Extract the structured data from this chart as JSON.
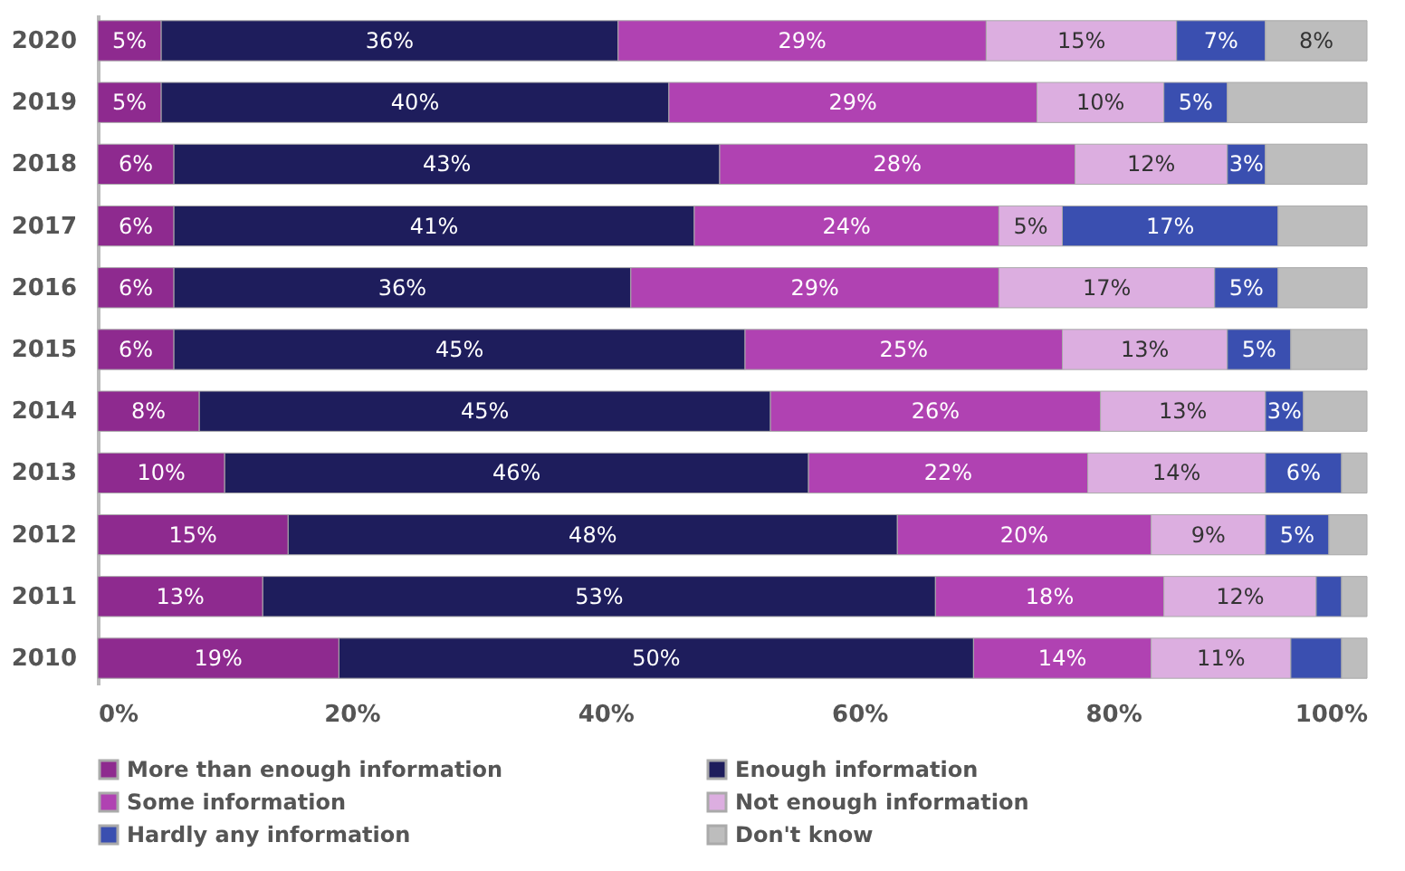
{
  "chart_data": {
    "type": "bar",
    "orientation": "horizontal",
    "stacked": true,
    "categories": [
      "2020",
      "2019",
      "2018",
      "2017",
      "2016",
      "2015",
      "2014",
      "2013",
      "2012",
      "2011",
      "2010"
    ],
    "series": [
      {
        "name": "More than enough information",
        "color": "#8e2a8f",
        "values": [
          5,
          5,
          6,
          6,
          6,
          6,
          8,
          10,
          15,
          13,
          19
        ],
        "value_labels": [
          "5%",
          "5%",
          "6%",
          "6%",
          "6%",
          "6%",
          "8%",
          "10%",
          "15%",
          "13%",
          "19%"
        ]
      },
      {
        "name": "Enough information",
        "color": "#1e1d5c",
        "values": [
          36,
          40,
          43,
          41,
          36,
          45,
          45,
          46,
          48,
          53,
          50
        ],
        "value_labels": [
          "36%",
          "40%",
          "43%",
          "41%",
          "36%",
          "45%",
          "45%",
          "46%",
          "48%",
          "53%",
          "50%"
        ]
      },
      {
        "name": "Some information",
        "color": "#b042b2",
        "values": [
          29,
          29,
          28,
          24,
          29,
          25,
          26,
          22,
          20,
          18,
          14
        ],
        "value_labels": [
          "29%",
          "29%",
          "28%",
          "24%",
          "29%",
          "25%",
          "26%",
          "22%",
          "20%",
          "18%",
          "14%"
        ]
      },
      {
        "name": "Not enough information",
        "color": "#dcaee0",
        "values": [
          15,
          10,
          12,
          5,
          17,
          13,
          13,
          14,
          9,
          12,
          11
        ],
        "value_labels": [
          "15%",
          "10%",
          "12%",
          "5%",
          "17%",
          "13%",
          "13%",
          "14%",
          "9%",
          "12%",
          "11%"
        ]
      },
      {
        "name": "Hardly any information",
        "color": "#3a4fb0",
        "values": [
          7,
          5,
          3,
          17,
          5,
          5,
          3,
          6,
          5,
          2,
          4
        ],
        "value_labels": [
          "7%",
          "5%",
          "3%",
          "17%",
          "5%",
          "5%",
          "3%",
          "6%",
          "5%",
          null,
          null
        ]
      },
      {
        "name": "Don't know",
        "color": "#bdbdbd",
        "values": [
          8,
          11,
          8,
          7,
          7,
          6,
          5,
          2,
          3,
          2,
          2
        ],
        "value_labels": [
          "8%",
          null,
          null,
          null,
          null,
          null,
          null,
          null,
          null,
          null,
          null
        ]
      }
    ],
    "xlim": [
      0,
      100
    ],
    "xticks": [
      {
        "value": 0,
        "label": "0%"
      },
      {
        "value": 20,
        "label": "20%"
      },
      {
        "value": 40,
        "label": "40%"
      },
      {
        "value": 60,
        "label": "60%"
      },
      {
        "value": 80,
        "label": "80%"
      },
      {
        "value": 100,
        "label": "100%"
      }
    ],
    "grid": false,
    "legend": "bottom"
  }
}
